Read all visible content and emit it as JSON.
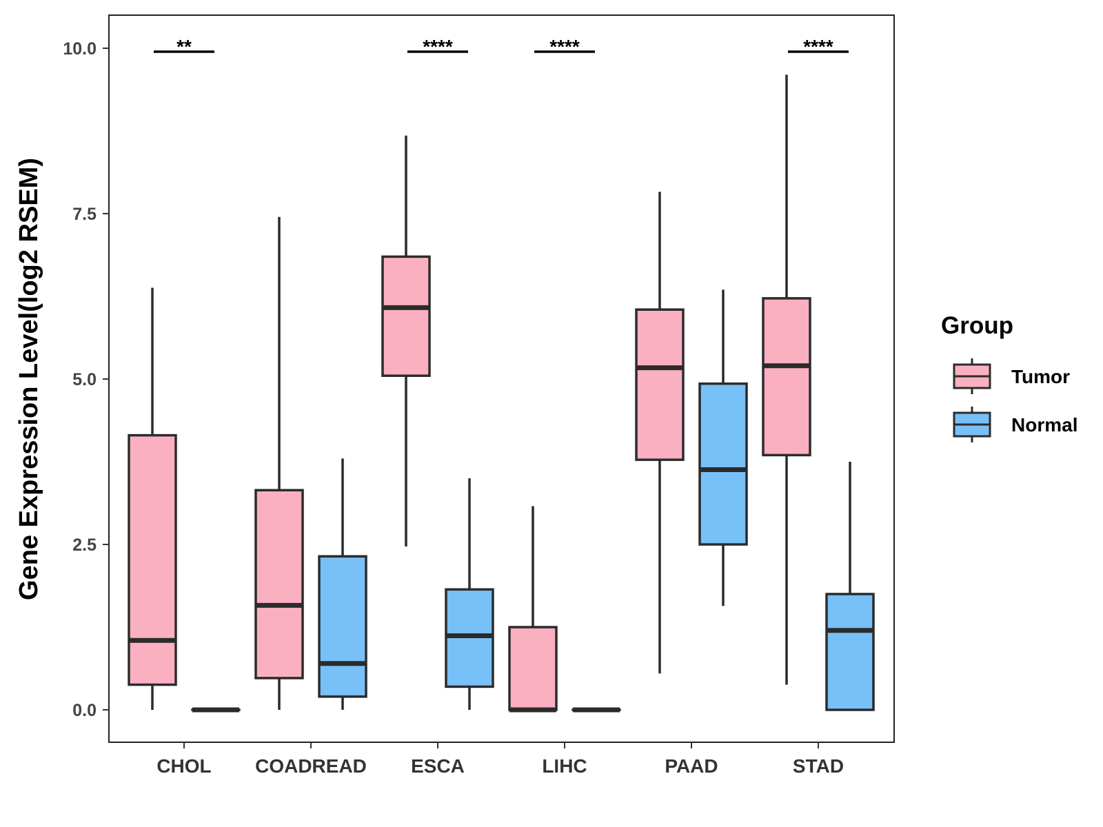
{
  "chart_data": {
    "type": "boxplot",
    "title": "",
    "xlabel": "",
    "ylabel": "Gene Expression Level(log2 RSEM)",
    "ylim": [
      -0.5,
      10.5
    ],
    "yticks": [
      0.0,
      2.5,
      5.0,
      7.5,
      10.0
    ],
    "ytick_labels": [
      "0.0",
      "2.5",
      "5.0",
      "7.5",
      "10.0"
    ],
    "grid": false,
    "categories": [
      "CHOL",
      "COADREAD",
      "ESCA",
      "LIHC",
      "PAAD",
      "STAD"
    ],
    "legend": {
      "title": "Group",
      "position": "right",
      "entries": [
        {
          "name": "Tumor",
          "color": "#FBB0C1"
        },
        {
          "name": "Normal",
          "color": "#78C0F8"
        }
      ]
    },
    "series": [
      {
        "name": "Tumor",
        "color": "#FBB0C1",
        "boxes": [
          {
            "category": "CHOL",
            "min": 0.0,
            "q1": 0.38,
            "median": 1.05,
            "q3": 4.15,
            "max": 6.38
          },
          {
            "category": "COADREAD",
            "min": 0.0,
            "q1": 0.48,
            "median": 1.58,
            "q3": 3.32,
            "max": 7.45
          },
          {
            "category": "ESCA",
            "min": 2.47,
            "q1": 5.05,
            "median": 6.08,
            "q3": 6.85,
            "max": 8.68
          },
          {
            "category": "LIHC",
            "min": 0.0,
            "q1": 0.0,
            "median": 0.0,
            "q3": 1.25,
            "max": 3.08
          },
          {
            "category": "PAAD",
            "min": 0.55,
            "q1": 3.78,
            "median": 5.17,
            "q3": 6.05,
            "max": 7.83
          },
          {
            "category": "STAD",
            "min": 0.38,
            "q1": 3.85,
            "median": 5.2,
            "q3": 6.22,
            "max": 9.6
          }
        ]
      },
      {
        "name": "Normal",
        "color": "#78C0F8",
        "boxes": [
          {
            "category": "CHOL",
            "min": 0.0,
            "q1": 0.0,
            "median": 0.0,
            "q3": 0.0,
            "max": 0.0
          },
          {
            "category": "COADREAD",
            "min": 0.0,
            "q1": 0.2,
            "median": 0.7,
            "q3": 2.32,
            "max": 3.8
          },
          {
            "category": "ESCA",
            "min": 0.0,
            "q1": 0.35,
            "median": 1.12,
            "q3": 1.82,
            "max": 3.5
          },
          {
            "category": "LIHC",
            "min": 0.0,
            "q1": 0.0,
            "median": 0.0,
            "q3": 0.0,
            "max": 0.0
          },
          {
            "category": "PAAD",
            "min": 1.57,
            "q1": 2.5,
            "median": 3.63,
            "q3": 4.93,
            "max": 6.35
          },
          {
            "category": "STAD",
            "min": 0.0,
            "q1": 0.0,
            "median": 1.2,
            "q3": 1.75,
            "max": 3.75
          }
        ]
      }
    ],
    "significance": [
      {
        "category": "CHOL",
        "label": "**"
      },
      {
        "category": "ESCA",
        "label": "****"
      },
      {
        "category": "LIHC",
        "label": "****"
      },
      {
        "category": "STAD",
        "label": "****"
      }
    ],
    "significance_y": 10.0
  }
}
